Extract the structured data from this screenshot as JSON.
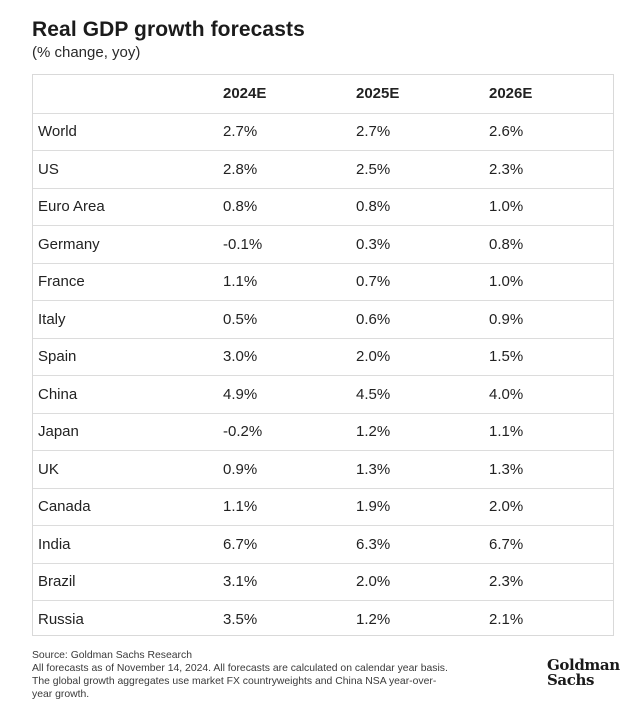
{
  "header": {
    "title": "Real GDP growth forecasts",
    "subtitle": "(% change, yoy)"
  },
  "chart_data": {
    "type": "table",
    "title": "Real GDP growth forecasts",
    "subtitle": "(% change, yoy)",
    "columns": [
      "",
      "2024E",
      "2025E",
      "2026E"
    ],
    "rows": [
      {
        "name": "World",
        "values": [
          "2.7%",
          "2.7%",
          "2.6%"
        ]
      },
      {
        "name": "US",
        "values": [
          "2.8%",
          "2.5%",
          "2.3%"
        ]
      },
      {
        "name": "Euro Area",
        "values": [
          "0.8%",
          "0.8%",
          "1.0%"
        ]
      },
      {
        "name": "Germany",
        "values": [
          "-0.1%",
          "0.3%",
          "0.8%"
        ]
      },
      {
        "name": "France",
        "values": [
          "1.1%",
          "0.7%",
          "1.0%"
        ]
      },
      {
        "name": "Italy",
        "values": [
          "0.5%",
          "0.6%",
          "0.9%"
        ]
      },
      {
        "name": "Spain",
        "values": [
          "3.0%",
          "2.0%",
          "1.5%"
        ]
      },
      {
        "name": "China",
        "values": [
          "4.9%",
          "4.5%",
          "4.0%"
        ]
      },
      {
        "name": "Japan",
        "values": [
          "-0.2%",
          "1.2%",
          "1.1%"
        ]
      },
      {
        "name": "UK",
        "values": [
          "0.9%",
          "1.3%",
          "1.3%"
        ]
      },
      {
        "name": "Canada",
        "values": [
          "1.1%",
          "1.9%",
          "2.0%"
        ]
      },
      {
        "name": "India",
        "values": [
          "6.7%",
          "6.3%",
          "6.7%"
        ]
      },
      {
        "name": "Brazil",
        "values": [
          "3.1%",
          "2.0%",
          "2.3%"
        ]
      },
      {
        "name": "Russia",
        "values": [
          "3.5%",
          "1.2%",
          "2.1%"
        ]
      }
    ]
  },
  "footer": {
    "source_lines": [
      "Source: Goldman Sachs Research",
      "All forecasts as of November 14, 2024. All forecasts are calculated on calendar year basis.",
      "The global growth aggregates use market FX countryweights and China NSA year-over-",
      "year growth."
    ],
    "logo_line1": "Goldman",
    "logo_line2": "Sachs"
  }
}
